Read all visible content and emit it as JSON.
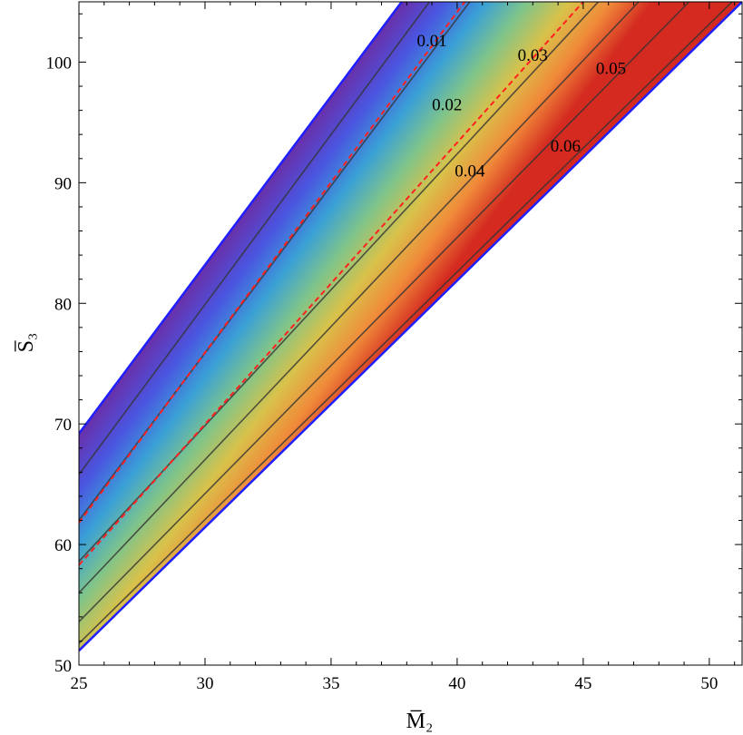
{
  "chart_data": {
    "type": "contour",
    "title": "",
    "xlabel": "M̅₂",
    "ylabel": "S̅₃",
    "xlim": [
      25,
      51.3
    ],
    "ylim": [
      50,
      105
    ],
    "x_ticks": [
      25,
      30,
      35,
      40,
      45,
      50
    ],
    "y_ticks": [
      50,
      60,
      70,
      80,
      90,
      100
    ],
    "region": {
      "upper_boundary": [
        [
          25,
          69.2
        ],
        [
          37.8,
          105
        ]
      ],
      "lower_boundary": [
        [
          25,
          51.2
        ],
        [
          51.3,
          105
        ]
      ],
      "boundary_color": "#1f1fff"
    },
    "colormap": [
      "#6a2fa8",
      "#4a55e0",
      "#3aa0d6",
      "#7fc48a",
      "#d8c24a",
      "#f08a3a",
      "#d42a20"
    ],
    "contours": [
      {
        "value": 0.01,
        "label": "0.01",
        "color": "#333333",
        "line": [
          [
            25,
            65.8
          ],
          [
            38.9,
            105
          ]
        ]
      },
      {
        "value": 0.02,
        "label": "0.02",
        "color": "#333333",
        "line": [
          [
            25,
            62.0
          ],
          [
            40.5,
            105
          ]
        ]
      },
      {
        "value": 0.03,
        "label": "0.03",
        "color": "#333333",
        "line": [
          [
            25,
            58.6
          ],
          [
            45.6,
            105
          ]
        ]
      },
      {
        "value": 0.04,
        "label": "0.04",
        "color": "#333333",
        "line": [
          [
            25,
            56.0
          ],
          [
            47.2,
            105
          ]
        ]
      },
      {
        "value": 0.05,
        "label": "0.05",
        "color": "#333333",
        "line": [
          [
            25,
            53.6
          ],
          [
            49.2,
            105
          ]
        ]
      },
      {
        "value": 0.06,
        "label": "0.06",
        "color": "#333333",
        "line": [
          [
            25,
            51.8
          ],
          [
            50.9,
            105
          ]
        ]
      }
    ],
    "dashed_lines": [
      {
        "color": "#ff2020",
        "line": [
          [
            25,
            61.8
          ],
          [
            40.3,
            105
          ]
        ]
      },
      {
        "color": "#ff2020",
        "line": [
          [
            25,
            58.3
          ],
          [
            45.0,
            105
          ]
        ]
      }
    ],
    "contour_labels": [
      {
        "text": "0.01",
        "x": 39.0,
        "y": 101.3
      },
      {
        "text": "0.02",
        "x": 39.6,
        "y": 96.0
      },
      {
        "text": "0.03",
        "x": 43.0,
        "y": 100.1
      },
      {
        "text": "0.04",
        "x": 40.5,
        "y": 90.5
      },
      {
        "text": "0.05",
        "x": 46.1,
        "y": 99.0
      },
      {
        "text": "0.06",
        "x": 44.3,
        "y": 92.6
      }
    ]
  }
}
